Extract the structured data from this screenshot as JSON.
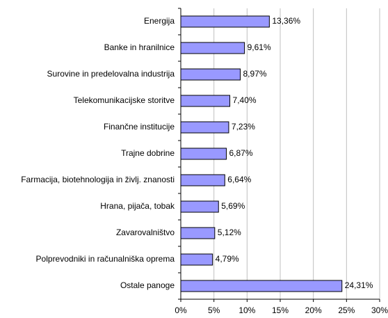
{
  "chart_data": {
    "type": "bar",
    "orientation": "horizontal",
    "categories": [
      "Energija",
      "Banke in hranilnice",
      "Surovine in predelovalna industrija",
      "Telekomunikacijske storitve",
      "Finančne institucije",
      "Trajne dobrine",
      "Farmacija, biotehnologija in življ. znanosti",
      "Hrana, pijača, tobak",
      "Zavarovalništvo",
      "Polprevodniki in računalniška oprema",
      "Ostale panoge"
    ],
    "values": [
      13.36,
      9.61,
      8.97,
      7.4,
      7.23,
      6.87,
      6.64,
      5.69,
      5.12,
      4.79,
      24.31
    ],
    "value_labels": [
      "13,36%",
      "9,61%",
      "8,97%",
      "7,40%",
      "7,23%",
      "6,87%",
      "6,64%",
      "5,69%",
      "5,12%",
      "4,79%",
      "24,31%"
    ],
    "color": "#9999ff",
    "xlim": [
      0,
      30
    ],
    "xticks": [
      {
        "value": 0,
        "label": "0%"
      },
      {
        "value": 5,
        "label": "5%"
      },
      {
        "value": 10,
        "label": "10%"
      },
      {
        "value": 15,
        "label": "15%"
      },
      {
        "value": 20,
        "label": "20%"
      },
      {
        "value": 25,
        "label": "25%"
      },
      {
        "value": 30,
        "label": "30%"
      }
    ],
    "grid": true
  }
}
